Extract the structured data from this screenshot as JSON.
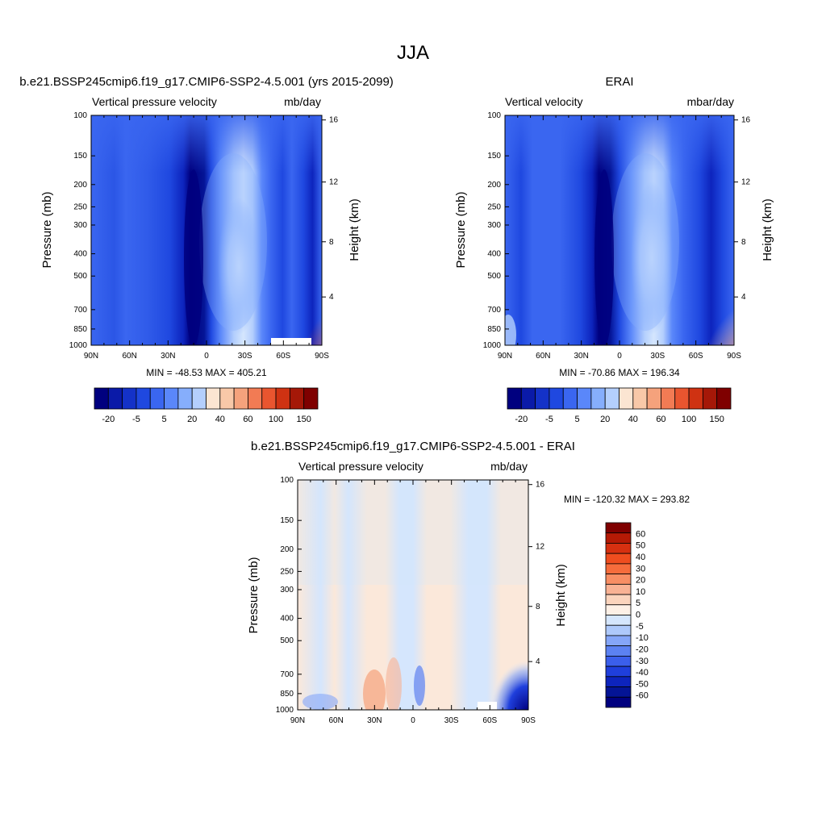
{
  "figure": {
    "title": "JJA"
  },
  "chart_data": [
    {
      "type": "heatmap",
      "id": "model",
      "title": "b.e21.BSSP245cmip6.f19_g17.CMIP6-SSP2-4.5.001 (yrs 2015-2099)",
      "variable": "Vertical pressure velocity",
      "units": "mb/day",
      "xlabel": "",
      "ylabel": "Pressure (mb)",
      "y2label": "Height (km)",
      "x_ticks": [
        "90N",
        "60N",
        "30N",
        "0",
        "30S",
        "60S",
        "90S"
      ],
      "y_ticks": [
        100,
        150,
        200,
        250,
        300,
        400,
        500,
        700,
        850,
        1000
      ],
      "y2_ticks": [
        4,
        8,
        12,
        16
      ],
      "ylim": [
        1000,
        100
      ],
      "y_scale": "log",
      "stats": "MIN = -48.53  MAX = 405.21",
      "min": -48.53,
      "max": 405.21,
      "colorbar": {
        "orientation": "horizontal",
        "labels": [
          "-20",
          "-5",
          "5",
          "20",
          "40",
          "60",
          "100",
          "150"
        ],
        "colors": [
          "#00007f",
          "#0a1aa8",
          "#1432c8",
          "#1f48e0",
          "#3a66f0",
          "#5a87fa",
          "#86aefc",
          "#b4cffd",
          "#fbe5d2",
          "#f8c8a8",
          "#f5a27c",
          "#f27b54",
          "#e9552f",
          "#cf3212",
          "#a51808",
          "#7f0000"
        ]
      }
    },
    {
      "type": "heatmap",
      "id": "obs",
      "title": "ERAI",
      "variable": "Vertical velocity",
      "units": "mbar/day",
      "xlabel": "",
      "ylabel": "Pressure (mb)",
      "y2label": "Height (km)",
      "x_ticks": [
        "90N",
        "60N",
        "30N",
        "0",
        "30S",
        "60S",
        "90S"
      ],
      "y_ticks": [
        100,
        150,
        200,
        250,
        300,
        400,
        500,
        700,
        850,
        1000
      ],
      "y2_ticks": [
        4,
        8,
        12,
        16
      ],
      "ylim": [
        1000,
        100
      ],
      "y_scale": "log",
      "stats": "MIN = -70.86  MAX = 196.34",
      "min": -70.86,
      "max": 196.34,
      "colorbar": {
        "orientation": "horizontal",
        "labels": [
          "-20",
          "-5",
          "5",
          "20",
          "40",
          "60",
          "100",
          "150"
        ],
        "colors": [
          "#00007f",
          "#0a1aa8",
          "#1432c8",
          "#1f48e0",
          "#3a66f0",
          "#5a87fa",
          "#86aefc",
          "#b4cffd",
          "#fbe5d2",
          "#f8c8a8",
          "#f5a27c",
          "#f27b54",
          "#e9552f",
          "#cf3212",
          "#a51808",
          "#7f0000"
        ]
      }
    },
    {
      "type": "heatmap",
      "id": "diff",
      "title": "b.e21.BSSP245cmip6.f19_g17.CMIP6-SSP2-4.5.001 - ERAI",
      "variable": "Vertical pressure velocity",
      "units": "mb/day",
      "xlabel": "",
      "ylabel": "Pressure (mb)",
      "y2label": "Height (km)",
      "x_ticks": [
        "90N",
        "60N",
        "30N",
        "0",
        "30S",
        "60S",
        "90S"
      ],
      "y_ticks": [
        100,
        150,
        200,
        250,
        300,
        400,
        500,
        700,
        850,
        1000
      ],
      "y2_ticks": [
        4,
        8,
        12,
        16
      ],
      "ylim": [
        1000,
        100
      ],
      "y_scale": "log",
      "stats": "MIN = -120.32  MAX = 293.82",
      "min": -120.32,
      "max": 293.82,
      "colorbar": {
        "orientation": "vertical",
        "labels": [
          "60",
          "50",
          "40",
          "30",
          "20",
          "10",
          "5",
          "0",
          "-5",
          "-10",
          "-20",
          "-30",
          "-40",
          "-50",
          "-60"
        ],
        "colors": [
          "#7f0000",
          "#b51a05",
          "#d63010",
          "#ef4d1f",
          "#f66c3c",
          "#f88e64",
          "#f9b294",
          "#fbd4bd",
          "#fdf0e6",
          "#d5e6fd",
          "#aec9fb",
          "#85a6f8",
          "#5c82f2",
          "#3b5feb",
          "#1f3fdc",
          "#0d24bd",
          "#041496",
          "#00007f"
        ]
      }
    }
  ]
}
